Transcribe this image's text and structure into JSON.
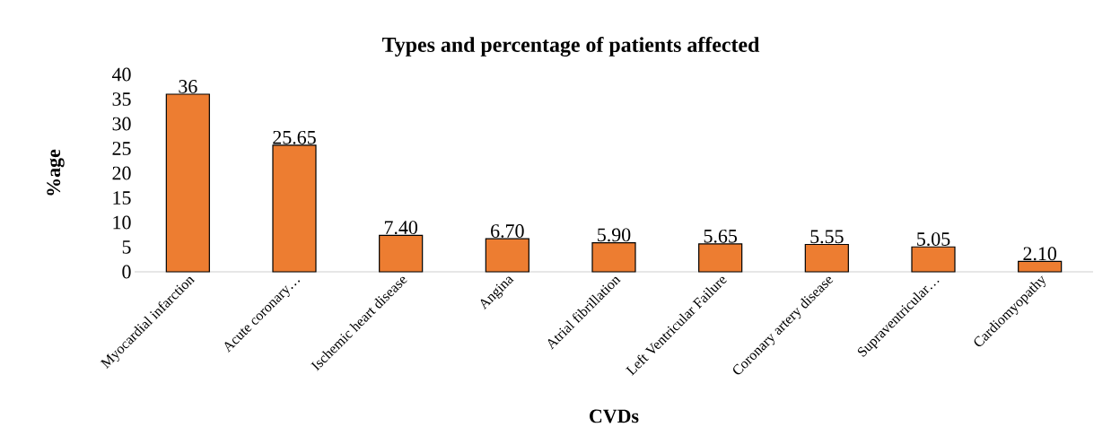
{
  "chart_data": {
    "type": "bar",
    "title": "Types and percentage of patients affected",
    "xlabel": "CVDs",
    "ylabel": "%age",
    "categories": [
      "Myocardial infarction",
      "Acute coronary…",
      "Ischemic heart disease",
      "Angina",
      "Atrial fibrillation",
      "Left Ventricular Failure",
      "Coronary artery disease",
      "Supraventricular…",
      "Cardiomyopathy"
    ],
    "values": [
      36,
      25.65,
      7.4,
      6.7,
      5.9,
      5.65,
      5.55,
      5.05,
      2.1
    ],
    "value_labels": [
      "36",
      "25.65",
      "7.40",
      "6.70",
      "5.90",
      "5.65",
      "5.55",
      "5.05",
      "2.10"
    ],
    "color": "#ed7d31",
    "ylim": [
      0,
      40
    ],
    "yticks": [
      0,
      5,
      10,
      15,
      20,
      25,
      30,
      35,
      40
    ],
    "grid": false
  }
}
